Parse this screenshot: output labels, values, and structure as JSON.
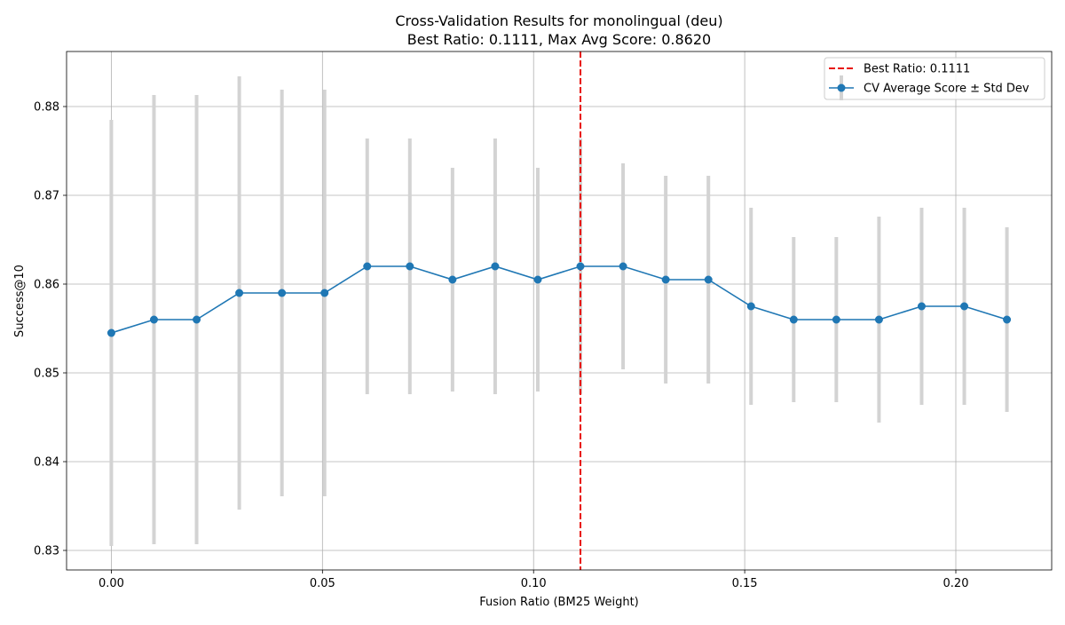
{
  "chart_data": {
    "type": "line",
    "title": "Cross-Validation Results for monolingual (deu)",
    "subtitle": "Best Ratio: 0.1111, Max Avg Score: 0.8620",
    "xlabel": "Fusion Ratio (BM25 Weight)",
    "ylabel": "Success@10",
    "xlim": [
      -0.0106,
      0.2227
    ],
    "ylim": [
      0.8278,
      0.8862
    ],
    "x_ticks": [
      "0.00",
      "0.05",
      "0.10",
      "0.15",
      "0.20"
    ],
    "x_tick_values": [
      0.0,
      0.05,
      0.1,
      0.15,
      0.2
    ],
    "y_ticks": [
      "0.83",
      "0.84",
      "0.85",
      "0.86",
      "0.87",
      "0.88"
    ],
    "y_tick_values": [
      0.83,
      0.84,
      0.85,
      0.86,
      0.87,
      0.88
    ],
    "grid": true,
    "legend_position": "top-right",
    "best_ratio": {
      "label": "Best Ratio: 0.1111",
      "value": 0.1111,
      "color": "#e8120c",
      "style": "dashed"
    },
    "series": [
      {
        "name": "CV Average Score ± Std Dev",
        "color": "#1f77b4",
        "errorbar_color": "#d3d3d3",
        "x": [
          0.0,
          0.0101,
          0.0202,
          0.0303,
          0.0404,
          0.0505,
          0.0606,
          0.0707,
          0.0808,
          0.0909,
          0.101,
          0.1111,
          0.1212,
          0.1313,
          0.1414,
          0.1515,
          0.1616,
          0.1717,
          0.1818,
          0.1919,
          0.202,
          0.2121
        ],
        "y": [
          0.8545,
          0.856,
          0.856,
          0.859,
          0.859,
          0.859,
          0.862,
          0.862,
          0.8605,
          0.862,
          0.8605,
          0.862,
          0.862,
          0.8605,
          0.8605,
          0.8575,
          0.856,
          0.856,
          0.856,
          0.8575,
          0.8575,
          0.856
        ],
        "std": [
          0.024,
          0.0253,
          0.0253,
          0.0244,
          0.0229,
          0.0229,
          0.0144,
          0.0144,
          0.0126,
          0.0144,
          0.0126,
          0.0144,
          0.0116,
          0.0117,
          0.0117,
          0.0111,
          0.0093,
          0.0093,
          0.0116,
          0.0111,
          0.0111,
          0.0104
        ]
      }
    ]
  }
}
